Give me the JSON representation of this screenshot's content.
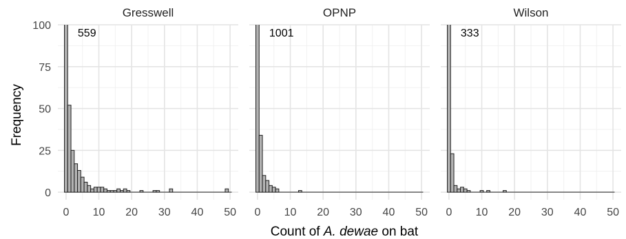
{
  "chart_data": {
    "type": "bar",
    "xlabel_parts": [
      "Count of ",
      "A. dewae",
      " on bat"
    ],
    "ylabel": "Frequency",
    "xlim": [
      0,
      50
    ],
    "ylim": [
      0,
      100
    ],
    "xticks": [
      0,
      10,
      20,
      30,
      40,
      50
    ],
    "yticks": [
      0,
      25,
      50,
      75,
      100
    ],
    "binwidth": 1,
    "bar_fill": "#b3b3b3",
    "bar_stroke": "#1e1e1e",
    "panels": [
      {
        "title": "Gresswell",
        "zero_count_label": "559",
        "bins": [
          [
            0,
            559
          ],
          [
            1,
            52
          ],
          [
            2,
            25
          ],
          [
            3,
            17
          ],
          [
            4,
            13
          ],
          [
            5,
            9
          ],
          [
            6,
            6
          ],
          [
            7,
            4
          ],
          [
            8,
            2
          ],
          [
            9,
            3
          ],
          [
            10,
            3
          ],
          [
            11,
            3
          ],
          [
            12,
            2
          ],
          [
            13,
            1
          ],
          [
            14,
            1
          ],
          [
            15,
            1
          ],
          [
            16,
            2
          ],
          [
            17,
            1
          ],
          [
            18,
            2
          ],
          [
            19,
            1
          ],
          [
            23,
            1
          ],
          [
            27,
            1
          ],
          [
            28,
            1
          ],
          [
            32,
            2
          ],
          [
            49,
            2
          ]
        ]
      },
      {
        "title": "OPNP",
        "zero_count_label": "1001",
        "bins": [
          [
            0,
            1001
          ],
          [
            1,
            34
          ],
          [
            2,
            10
          ],
          [
            3,
            7
          ],
          [
            4,
            4
          ],
          [
            5,
            3
          ],
          [
            6,
            2
          ],
          [
            13,
            1
          ]
        ]
      },
      {
        "title": "Wilson",
        "zero_count_label": "333",
        "bins": [
          [
            0,
            333
          ],
          [
            1,
            23
          ],
          [
            2,
            4
          ],
          [
            3,
            2
          ],
          [
            4,
            3
          ],
          [
            5,
            2
          ],
          [
            6,
            1
          ],
          [
            10,
            1
          ],
          [
            12,
            1
          ],
          [
            17,
            1
          ]
        ]
      }
    ]
  }
}
